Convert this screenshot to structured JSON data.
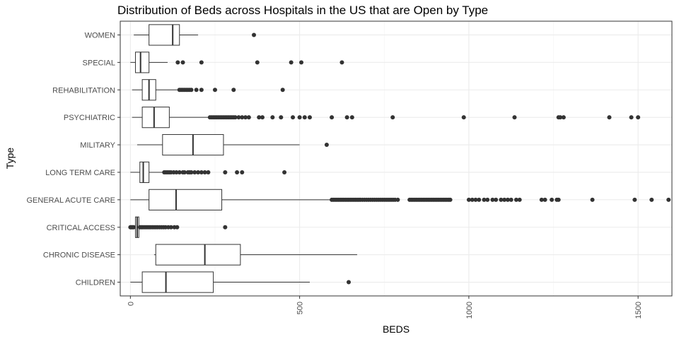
{
  "chart_data": {
    "type": "boxplot",
    "orientation": "horizontal",
    "title": "Distribution of Beds across Hospitals in the US that are Open by Type",
    "xlabel": "BEDS",
    "ylabel": "Type",
    "xlim": [
      -30,
      1600
    ],
    "xticks": [
      0,
      500,
      1000,
      1500
    ],
    "xtick_labels": [
      "0",
      "500",
      "1000",
      "1500"
    ],
    "grid": true,
    "theme": "bw",
    "categories": [
      "CHILDREN",
      "CHRONIC DISEASE",
      "CRITICAL ACCESS",
      "GENERAL ACUTE CARE",
      "LONG TERM CARE",
      "MILITARY",
      "PSYCHIATRIC",
      "REHABILITATION",
      "SPECIAL",
      "WOMEN"
    ],
    "boxes": [
      {
        "category": "CHILDREN",
        "min": 0,
        "q1": 35,
        "median": 105,
        "q3": 245,
        "max": 530,
        "outliers": [
          645
        ]
      },
      {
        "category": "CHRONIC DISEASE",
        "min": 70,
        "q1": 75,
        "median": 220,
        "q3": 325,
        "max": 670,
        "outliers": []
      },
      {
        "category": "CRITICAL ACCESS",
        "min": 0,
        "q1": 15,
        "median": 20,
        "q3": 25,
        "max": 25,
        "outliers": [
          0,
          2,
          4,
          6,
          8,
          10,
          28,
          30,
          33,
          36,
          40,
          44,
          48,
          52,
          56,
          60,
          65,
          70,
          75,
          80,
          86,
          92,
          98,
          104,
          112,
          120,
          130,
          138,
          280
        ]
      },
      {
        "category": "GENERAL ACUTE CARE",
        "min": 0,
        "q1": 55,
        "median": 135,
        "q3": 270,
        "max": 590,
        "outliers": [
          595,
          600,
          605,
          610,
          615,
          620,
          625,
          630,
          635,
          640,
          645,
          650,
          655,
          660,
          665,
          670,
          675,
          680,
          686,
          692,
          698,
          704,
          710,
          716,
          722,
          728,
          734,
          740,
          746,
          752,
          758,
          764,
          770,
          776,
          782,
          790,
          825,
          830,
          835,
          840,
          845,
          850,
          855,
          860,
          865,
          870,
          875,
          880,
          885,
          890,
          895,
          900,
          905,
          910,
          915,
          920,
          925,
          930,
          935,
          940,
          945,
          1000,
          1010,
          1020,
          1030,
          1045,
          1055,
          1070,
          1080,
          1095,
          1105,
          1115,
          1125,
          1140,
          1150,
          1215,
          1225,
          1245,
          1260,
          1265,
          1365,
          1490,
          1540,
          1590
        ]
      },
      {
        "category": "LONG TERM CARE",
        "min": 0,
        "q1": 28,
        "median": 38,
        "q3": 55,
        "max": 95,
        "outliers": [
          100,
          105,
          110,
          115,
          120,
          128,
          136,
          145,
          155,
          160,
          170,
          175,
          180,
          190,
          200,
          210,
          220,
          230,
          280,
          315,
          330,
          455
        ]
      },
      {
        "category": "MILITARY",
        "min": 20,
        "q1": 95,
        "median": 185,
        "q3": 275,
        "max": 500,
        "outliers": [
          580
        ]
      },
      {
        "category": "PSYCHIATRIC",
        "min": 5,
        "q1": 35,
        "median": 70,
        "q3": 115,
        "max": 230,
        "outliers": [
          235,
          240,
          245,
          250,
          255,
          260,
          265,
          270,
          275,
          280,
          285,
          290,
          295,
          300,
          305,
          310,
          320,
          330,
          340,
          350,
          380,
          390,
          420,
          445,
          480,
          500,
          515,
          530,
          595,
          640,
          655,
          775,
          985,
          1135,
          1265,
          1270,
          1280,
          1415,
          1480,
          1500
        ]
      },
      {
        "category": "REHABILITATION",
        "min": 5,
        "q1": 35,
        "median": 55,
        "q3": 75,
        "max": 140,
        "outliers": [
          145,
          150,
          155,
          160,
          165,
          170,
          175,
          180,
          195,
          210,
          250,
          305,
          450
        ]
      },
      {
        "category": "SPECIAL",
        "min": 0,
        "q1": 15,
        "median": 30,
        "q3": 55,
        "max": 110,
        "outliers": [
          140,
          155,
          210,
          375,
          475,
          505,
          625
        ]
      },
      {
        "category": "WOMEN",
        "min": 10,
        "q1": 55,
        "median": 125,
        "q3": 145,
        "max": 200,
        "outliers": [
          365
        ]
      }
    ]
  }
}
